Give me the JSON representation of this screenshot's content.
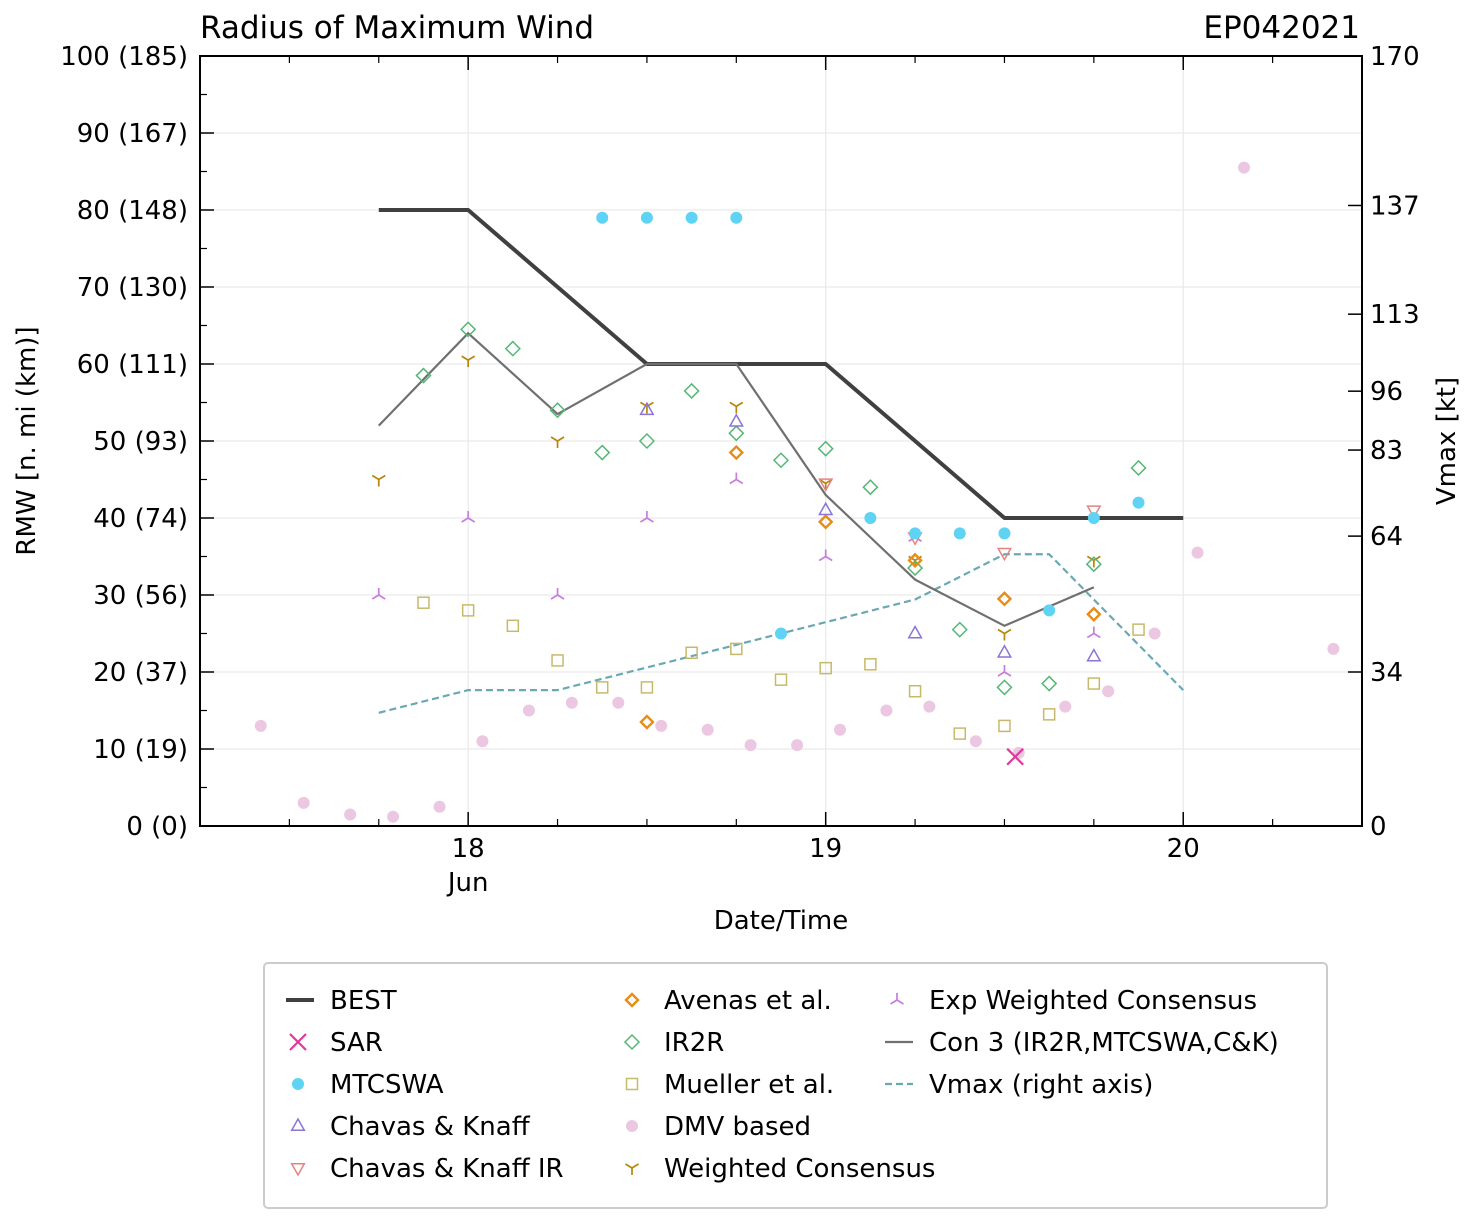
{
  "chart_data": {
    "type": "scatter",
    "title": "Radius of Maximum Wind",
    "storm_id": "EP042021",
    "xlabel": "Date/Time",
    "ylabel": "RMW [n. mi (km)]",
    "y2label": "Vmax [kt]",
    "xlim": [
      17.25,
      20.5
    ],
    "ylim": [
      0,
      100
    ],
    "y2lim": [
      0,
      170
    ],
    "x_ticks": [
      {
        "value": 18,
        "label": "18",
        "sublabel": "Jun"
      },
      {
        "value": 19,
        "label": "19",
        "sublabel": ""
      },
      {
        "value": 20,
        "label": "20",
        "sublabel": ""
      }
    ],
    "y_ticks": [
      {
        "value": 0,
        "label": "0 (0)"
      },
      {
        "value": 10,
        "label": "10 (19)"
      },
      {
        "value": 20,
        "label": "20 (37)"
      },
      {
        "value": 30,
        "label": "30 (56)"
      },
      {
        "value": 40,
        "label": "40 (74)"
      },
      {
        "value": 50,
        "label": "50 (93)"
      },
      {
        "value": 60,
        "label": "60 (111)"
      },
      {
        "value": 70,
        "label": "70 (130)"
      },
      {
        "value": 80,
        "label": "80 (148)"
      },
      {
        "value": 90,
        "label": "90 (167)"
      },
      {
        "value": 100,
        "label": "100 (185)"
      }
    ],
    "y2_ticks": [
      {
        "value": 0,
        "label": "0"
      },
      {
        "value": 34,
        "label": "34"
      },
      {
        "value": 64,
        "label": "64"
      },
      {
        "value": 83,
        "label": "83"
      },
      {
        "value": 96,
        "label": "96"
      },
      {
        "value": 113,
        "label": "113"
      },
      {
        "value": 137,
        "label": "137"
      },
      {
        "value": 170,
        "label": "170"
      }
    ],
    "grid": true,
    "legend_position": "below",
    "series": [
      {
        "name": "BEST",
        "marker": "line",
        "color": "#404040",
        "x": [
          17.75,
          18.0,
          18.5,
          19.0,
          19.5,
          20.0
        ],
        "y": [
          80,
          80,
          60,
          60,
          40,
          40
        ]
      },
      {
        "name": "SAR",
        "marker": "x",
        "color": "#e0399a",
        "x": [
          19.53
        ],
        "y": [
          9
        ]
      },
      {
        "name": "MTCSWA",
        "marker": "dot",
        "color": "#5fd3f3",
        "x": [
          18.375,
          18.5,
          18.625,
          18.75,
          18.875,
          19.125,
          19.25,
          19.375,
          19.5,
          19.625,
          19.75,
          19.875
        ],
        "y": [
          79,
          79,
          79,
          79,
          25,
          40,
          38,
          38,
          38,
          28,
          40,
          42
        ]
      },
      {
        "name": "Chavas & Knaff",
        "marker": "triangle-up",
        "color": "#8a74d6",
        "x": [
          18.5,
          18.75,
          19.0,
          19.25,
          19.5,
          19.75
        ],
        "y": [
          54,
          52.5,
          41,
          25,
          22.5,
          22
        ]
      },
      {
        "name": "Chavas & Knaff IR",
        "marker": "triangle-down",
        "color": "#e58383",
        "x": [
          19.0,
          19.25,
          19.5,
          19.75
        ],
        "y": [
          44.5,
          37.5,
          35.5,
          41
        ]
      },
      {
        "name": "Avenas et al.",
        "marker": "diamond-bold",
        "color": "#e88c15",
        "x": [
          18.5,
          18.75,
          19.0,
          19.25,
          19.5,
          19.75
        ],
        "y": [
          13.5,
          48.5,
          39.5,
          34.5,
          29.5,
          27.5
        ]
      },
      {
        "name": "IR2R",
        "marker": "diamond",
        "color": "#55b776",
        "x": [
          17.875,
          18.0,
          18.125,
          18.25,
          18.375,
          18.5,
          18.625,
          18.75,
          18.875,
          19.0,
          19.125,
          19.25,
          19.375,
          19.5,
          19.625,
          19.75,
          19.875
        ],
        "y": [
          58.5,
          64.5,
          62,
          54,
          48.5,
          50,
          56.5,
          51,
          47.5,
          49,
          44,
          33.5,
          25.5,
          18,
          18.5,
          34,
          46.5
        ]
      },
      {
        "name": "Mueller et al.",
        "marker": "square",
        "color": "#c7b96b",
        "x": [
          17.875,
          18.0,
          18.125,
          18.25,
          18.375,
          18.5,
          18.625,
          18.75,
          18.875,
          19.0,
          19.125,
          19.25,
          19.375,
          19.5,
          19.625,
          19.75,
          19.875
        ],
        "y": [
          29,
          28,
          26,
          21.5,
          18,
          18,
          22.5,
          23,
          19,
          20.5,
          21,
          17.5,
          12,
          13,
          14.5,
          18.5,
          25.5
        ]
      },
      {
        "name": "DMV based",
        "marker": "dot",
        "color": "#ecc7e2",
        "x": [
          17.42,
          17.54,
          17.67,
          17.79,
          17.92,
          18.04,
          18.17,
          18.29,
          18.42,
          18.54,
          18.67,
          18.79,
          18.92,
          19.04,
          19.17,
          19.29,
          19.42,
          19.54,
          19.67,
          19.79,
          19.92,
          20.04,
          20.17,
          20.42
        ],
        "y": [
          13,
          3,
          1.5,
          1.2,
          2.5,
          11,
          15,
          16,
          16,
          13,
          12.5,
          10.5,
          10.5,
          12.5,
          15,
          15.5,
          11,
          9.5,
          15.5,
          17.5,
          25,
          35.5,
          85.5,
          23
        ]
      },
      {
        "name": "Weighted Consensus",
        "marker": "tri-down",
        "color": "#b8860b",
        "x": [
          17.75,
          18.0,
          18.25,
          18.5,
          18.75,
          19.0,
          19.25,
          19.5,
          19.75
        ],
        "y": [
          45,
          60.5,
          50,
          54.5,
          54.5,
          44.5,
          34.5,
          25,
          34.5
        ]
      },
      {
        "name": "Exp Weighted Consensus",
        "marker": "tri-up",
        "color": "#c77de0",
        "x": [
          17.75,
          18.0,
          18.25,
          18.5,
          18.75,
          19.0,
          19.25,
          19.5,
          19.75
        ],
        "y": [
          30,
          40,
          30,
          40,
          45,
          35,
          37.5,
          20,
          25
        ]
      },
      {
        "name": "Con 3 (IR2R,MTCSWA,C&K)",
        "marker": "line-thin",
        "color": "#707070",
        "x": [
          17.75,
          18.0,
          18.25,
          18.5,
          18.75,
          19.0,
          19.25,
          19.5,
          19.75
        ],
        "y": [
          52,
          64,
          53.5,
          60,
          60,
          43,
          32,
          26,
          31
        ]
      },
      {
        "name": "Vmax (right axis)",
        "marker": "dashed",
        "color": "#6aa8b4",
        "axis": "right",
        "x": [
          17.75,
          18.0,
          18.25,
          18.5,
          18.75,
          19.0,
          19.25,
          19.5,
          19.625,
          19.75,
          20.0
        ],
        "y": [
          25,
          30,
          30,
          35,
          40,
          45,
          50,
          60,
          60,
          50,
          30
        ]
      }
    ],
    "legend_rows": 5
  }
}
